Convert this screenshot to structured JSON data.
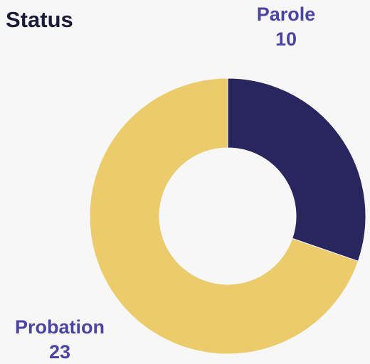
{
  "chart_data": {
    "type": "donut",
    "title": "Status",
    "categories": [
      "Parole",
      "Probation"
    ],
    "values": [
      10,
      23
    ],
    "colors": [
      "#29265f",
      "#ebcb6b"
    ]
  }
}
